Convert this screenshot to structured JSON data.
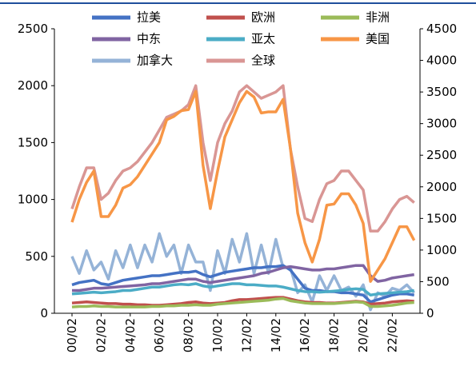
{
  "chart_data": {
    "type": "line",
    "categories": [
      "00/02",
      null,
      null,
      null,
      "02/02",
      null,
      null,
      null,
      "04/02",
      null,
      null,
      null,
      "06/02",
      null,
      null,
      null,
      "08/02",
      null,
      null,
      null,
      "10/02",
      null,
      null,
      null,
      "12/02",
      null,
      null,
      null,
      "14/02",
      null,
      null,
      null,
      "16/02",
      null,
      null,
      null,
      "18/02",
      null,
      null,
      null,
      "20/02",
      null,
      null,
      null,
      "22/02",
      null,
      null,
      null
    ],
    "ylim": [
      0,
      2500
    ],
    "yticks": [
      0,
      500,
      1000,
      1500,
      2000,
      2500
    ],
    "y2lim": [
      0,
      4500
    ],
    "y2ticks": [
      0,
      500,
      1000,
      1500,
      2000,
      2500,
      3000,
      3500,
      4000,
      4500
    ],
    "series": [
      {
        "name": "拉美",
        "color": "#4472c4",
        "values": [
          250,
          270,
          280,
          290,
          260,
          250,
          270,
          290,
          300,
          310,
          320,
          330,
          330,
          340,
          350,
          360,
          360,
          370,
          340,
          320,
          340,
          360,
          370,
          380,
          390,
          400,
          400,
          410,
          410,
          420,
          380,
          300,
          220,
          200,
          200,
          190,
          190,
          180,
          180,
          170,
          160,
          100,
          120,
          140,
          160,
          170,
          170,
          160
        ]
      },
      {
        "name": "欧洲",
        "color": "#c0504d",
        "values": [
          90,
          95,
          100,
          95,
          90,
          85,
          85,
          80,
          80,
          75,
          75,
          70,
          70,
          75,
          80,
          85,
          95,
          100,
          90,
          85,
          90,
          95,
          110,
          120,
          120,
          125,
          130,
          135,
          140,
          140,
          125,
          110,
          100,
          95,
          95,
          90,
          90,
          95,
          100,
          105,
          100,
          80,
          85,
          90,
          100,
          105,
          110,
          105
        ]
      },
      {
        "name": "非洲",
        "color": "#9bbb59",
        "values": [
          55,
          60,
          60,
          65,
          60,
          60,
          55,
          55,
          55,
          55,
          55,
          60,
          60,
          65,
          65,
          70,
          70,
          75,
          70,
          70,
          80,
          85,
          90,
          95,
          100,
          105,
          110,
          115,
          125,
          130,
          110,
          100,
          90,
          85,
          85,
          85,
          85,
          90,
          95,
          100,
          95,
          60,
          60,
          65,
          70,
          80,
          90,
          95
        ]
      },
      {
        "name": "中东",
        "color": "#8064a2",
        "values": [
          200,
          200,
          210,
          220,
          220,
          225,
          230,
          235,
          240,
          245,
          250,
          260,
          260,
          270,
          280,
          290,
          300,
          300,
          280,
          270,
          280,
          290,
          300,
          310,
          320,
          330,
          350,
          360,
          380,
          400,
          410,
          400,
          390,
          380,
          380,
          390,
          390,
          400,
          410,
          420,
          420,
          330,
          280,
          290,
          310,
          320,
          330,
          340
        ]
      },
      {
        "name": "亚太",
        "color": "#4bacc6",
        "values": [
          170,
          175,
          180,
          185,
          180,
          185,
          190,
          200,
          200,
          210,
          220,
          230,
          230,
          240,
          250,
          255,
          250,
          260,
          240,
          230,
          240,
          250,
          260,
          260,
          250,
          250,
          245,
          240,
          240,
          230,
          215,
          200,
          190,
          190,
          185,
          190,
          195,
          200,
          210,
          215,
          210,
          160,
          170,
          175,
          180,
          185,
          190,
          200
        ]
      },
      {
        "name": "美国",
        "color": "#f79646",
        "values": [
          800,
          1000,
          1150,
          1250,
          850,
          850,
          950,
          1100,
          1130,
          1200,
          1300,
          1400,
          1500,
          1700,
          1730,
          1780,
          1790,
          1950,
          1300,
          920,
          1250,
          1550,
          1700,
          1850,
          1950,
          1900,
          1760,
          1770,
          1770,
          1880,
          1450,
          880,
          620,
          450,
          650,
          950,
          960,
          1050,
          1050,
          950,
          790,
          280,
          380,
          480,
          620,
          760,
          760,
          640
        ]
      },
      {
        "name": "加拿大",
        "color": "#95b3d7",
        "values": [
          500,
          350,
          550,
          380,
          450,
          300,
          550,
          400,
          600,
          400,
          600,
          450,
          700,
          500,
          600,
          350,
          600,
          450,
          450,
          200,
          550,
          350,
          650,
          450,
          700,
          350,
          600,
          350,
          650,
          400,
          400,
          180,
          250,
          100,
          330,
          200,
          330,
          200,
          230,
          150,
          250,
          30,
          180,
          150,
          220,
          200,
          250,
          180
        ]
      },
      {
        "name": "全球",
        "color": "#d99694",
        "axis": "y2",
        "values": [
          1650,
          2000,
          2300,
          2300,
          1800,
          1900,
          2100,
          2250,
          2300,
          2400,
          2550,
          2700,
          2900,
          3100,
          3150,
          3200,
          3300,
          3600,
          2700,
          2100,
          2700,
          3000,
          3200,
          3500,
          3600,
          3500,
          3400,
          3450,
          3500,
          3600,
          2600,
          2000,
          1500,
          1450,
          1800,
          2050,
          2100,
          2250,
          2250,
          2100,
          1950,
          1300,
          1300,
          1450,
          1650,
          1800,
          1850,
          1750
        ]
      }
    ]
  }
}
